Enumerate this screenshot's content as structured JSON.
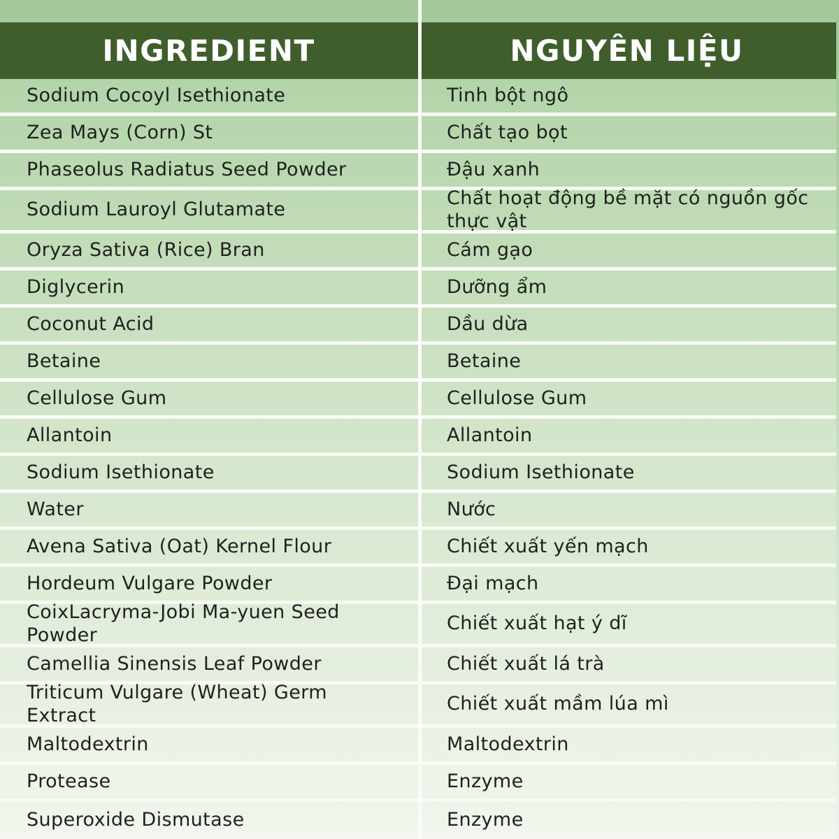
{
  "title": "Ingredient bilingual table",
  "colors": {
    "header_bg": "#3f5e2c",
    "header_text": "#ffffff",
    "canvas_top": "#a7cc9f",
    "row_gradient_top": "#b3d4a9",
    "row_gradient_bottom": "#f2f6ee",
    "divider": "#fafcf7",
    "body_text": "#1e211d"
  },
  "chart_data": {
    "type": "table",
    "columns": [
      "INGREDIENT",
      "NGUYÊN LIỆU"
    ],
    "rows": [
      [
        "Sodium Cocoyl Isethionate",
        "Tinh bột ngô"
      ],
      [
        "Zea Mays (Corn) St",
        "Chất tạo bọt"
      ],
      [
        "Phaseolus Radiatus Seed Powder",
        "Đậu xanh"
      ],
      [
        "Sodium Lauroyl Glutamate",
        "Chất hoạt động bề mặt có nguồn gốc\nthực vật"
      ],
      [
        "Oryza Sativa (Rice) Bran",
        "Cám gạo"
      ],
      [
        "Diglycerin",
        "Dưỡng ẩm"
      ],
      [
        "Coconut Acid",
        "Dầu dừa"
      ],
      [
        "Betaine",
        "Betaine"
      ],
      [
        "Cellulose Gum",
        "Cellulose Gum"
      ],
      [
        "Allantoin",
        "Allantoin"
      ],
      [
        "Sodium Isethionate",
        "Sodium Isethionate"
      ],
      [
        "Water",
        "Nước"
      ],
      [
        "Avena Sativa (Oat) Kernel Flour",
        "Chiết xuất yến mạch"
      ],
      [
        "Hordeum Vulgare Powder",
        "Đại mạch"
      ],
      [
        "CoixLacryma-Jobi Ma-yuen Seed Powder",
        "Chiết xuất hạt ý dĩ"
      ],
      [
        "Camellia Sinensis Leaf Powder",
        "Chiết xuất lá trà"
      ],
      [
        "Triticum Vulgare (Wheat) Germ Extract",
        "Chiết xuất mầm lúa mì"
      ],
      [
        "Maltodextrin",
        "Maltodextrin"
      ],
      [
        "Protease",
        "Enzyme"
      ],
      [
        "Superoxide Dismutase",
        "Enzyme"
      ]
    ]
  }
}
